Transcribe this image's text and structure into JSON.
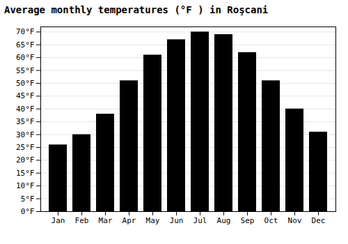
{
  "chart_data": {
    "type": "bar",
    "title": "Average monthly temperatures (°F ) in Roşcani",
    "categories": [
      "Jan",
      "Feb",
      "Mar",
      "Apr",
      "May",
      "Jun",
      "Jul",
      "Aug",
      "Sep",
      "Oct",
      "Nov",
      "Dec"
    ],
    "values": [
      26,
      30,
      38,
      51,
      61,
      67,
      70,
      69,
      62,
      51,
      40,
      31
    ],
    "ylim": [
      0,
      72
    ],
    "yticks": [
      {
        "value": 0,
        "label": "0°F"
      },
      {
        "value": 5,
        "label": "5°F"
      },
      {
        "value": 10,
        "label": "10°F"
      },
      {
        "value": 15,
        "label": "15°F"
      },
      {
        "value": 20,
        "label": "20°F"
      },
      {
        "value": 25,
        "label": "25°F"
      },
      {
        "value": 30,
        "label": "30°F"
      },
      {
        "value": 35,
        "label": "35°F"
      },
      {
        "value": 40,
        "label": "40°F"
      },
      {
        "value": 45,
        "label": "45°F"
      },
      {
        "value": 50,
        "label": "50°F"
      },
      {
        "value": 55,
        "label": "55°F"
      },
      {
        "value": 60,
        "label": "60°F"
      },
      {
        "value": 65,
        "label": "65°F"
      },
      {
        "value": 70,
        "label": "70°F"
      }
    ],
    "grid": true
  }
}
